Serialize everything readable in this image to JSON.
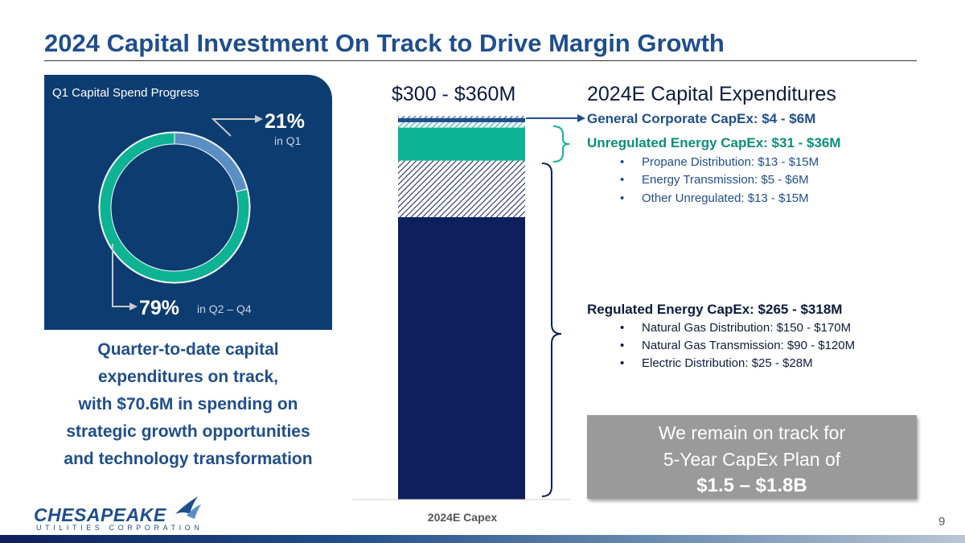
{
  "title": "2024 Capital Investment On Track to Drive Margin Growth",
  "q1_panel": {
    "heading": "Q1 Capital Spend Progress",
    "q1_percent": "21%",
    "q1_label": "in Q1",
    "rest_percent": "79%",
    "rest_label": "in Q2 – Q4",
    "q1_fraction": 0.21,
    "colors": {
      "q1": "#5b8fc4",
      "rest": "#0db394",
      "panel": "#0d3c70"
    }
  },
  "quote_lines": [
    "Quarter-to-date capital",
    "expenditures on track,",
    "with $70.6M in spending on",
    "strategic growth opportunities",
    "and technology transformation"
  ],
  "range_label": "$300 - $360M",
  "capex_heading": "2024E Capital Expenditures",
  "segments": {
    "general": {
      "label": "General Corporate CapEx: $4 - $6M"
    },
    "unregulated": {
      "label": "Unregulated Energy CapEx: $31 - $36M",
      "items": [
        "Propane Distribution: $13 - $15M",
        "Energy Transmission: $5 - $6M",
        "Other Unregulated: $13 - $15M"
      ]
    },
    "regulated": {
      "label": "Regulated Energy CapEx: $265 - $318M",
      "items": [
        "Natural Gas Distribution: $150 - $170M",
        "Natural Gas Transmission: $90 - $120M",
        "Electric Distribution: $25 - $28M"
      ]
    }
  },
  "callout": {
    "line1": "We remain on track for",
    "line2": "5-Year CapEx Plan of",
    "line3": "$1.5 – $1.8B"
  },
  "logo": {
    "word": "CHESAPEAKE",
    "sub": "UTILITIES CORPORATION"
  },
  "page_number": "9",
  "chart_data": {
    "type": "bar",
    "stacked": true,
    "categories": [
      "2024E Capex"
    ],
    "xlabel": "2024E Capex",
    "unit": "$M",
    "series": [
      {
        "name": "",
        "low": 265,
        "high": 318,
        "color": "#0d1f5c",
        "pattern": "solid-low-hatched-range"
      },
      {
        "name": "",
        "low": 31,
        "high": 36,
        "color": "#0db394",
        "pattern": "solid-low-hatched-range"
      },
      {
        "name": "",
        "low": 4,
        "high": 6,
        "color": "#1f4e8c",
        "pattern": "solid-low-hatched-range"
      }
    ],
    "total_low": 300,
    "total_high": 360
  }
}
